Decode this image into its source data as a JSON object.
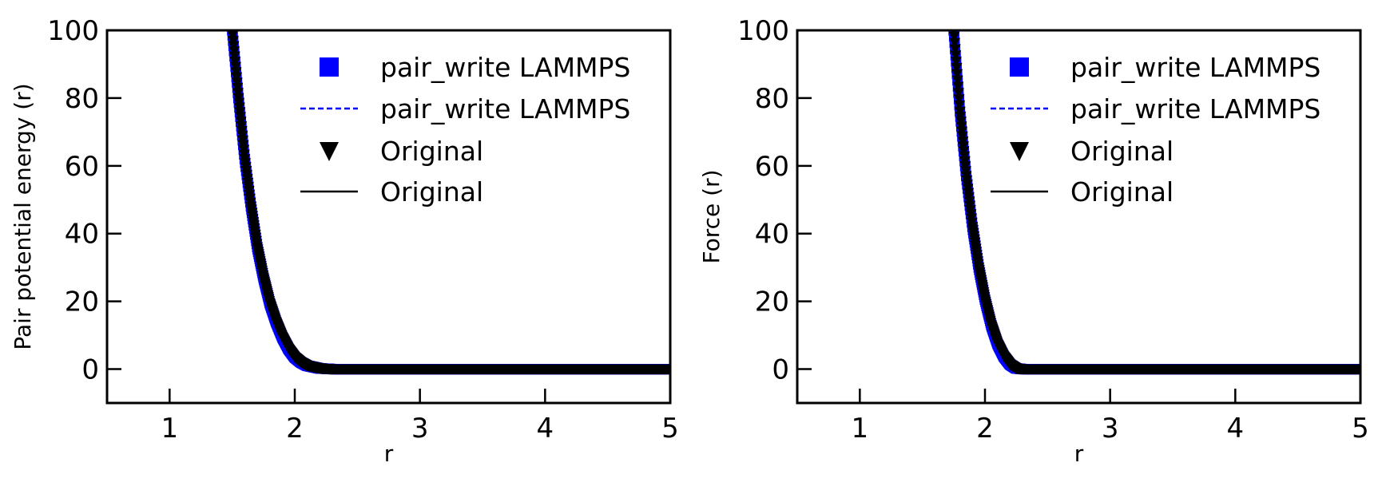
{
  "chart_data": [
    {
      "type": "line",
      "title": "",
      "xlabel": "r",
      "ylabel": "Pair potential energy (r)",
      "xlim": [
        0.5,
        5
      ],
      "ylim": [
        -10,
        100
      ],
      "xticks": [
        1,
        2,
        3,
        4,
        5
      ],
      "yticks": [
        0,
        20,
        40,
        60,
        80,
        100
      ],
      "grid": false,
      "legend_position": "top-right",
      "series": [
        {
          "name": "pair_write LAMMPS",
          "style": "square-markers",
          "color": "#0000ff",
          "x": [
            1.5,
            1.55,
            1.6,
            1.65,
            1.7,
            1.75,
            1.8,
            1.85,
            1.9,
            1.95,
            2.0,
            2.05,
            2.1,
            2.2,
            2.3,
            2.5,
            3.0,
            3.5,
            4.0,
            4.5,
            5.0
          ],
          "y": [
            100,
            80,
            62,
            48,
            36,
            27,
            19.5,
            14,
            9.5,
            6,
            3.5,
            2,
            1,
            0.2,
            0,
            0,
            0,
            0,
            0,
            0,
            0
          ]
        },
        {
          "name": "pair_write LAMMPS",
          "style": "dashed-line",
          "color": "#0000ff",
          "x": [
            1.5,
            1.55,
            1.6,
            1.65,
            1.7,
            1.75,
            1.8,
            1.85,
            1.9,
            1.95,
            2.0,
            2.05,
            2.1,
            2.2,
            2.3,
            2.5,
            3.0,
            3.5,
            4.0,
            4.5,
            5.0
          ],
          "y": [
            100,
            80,
            62,
            48,
            36,
            27,
            19.5,
            14,
            9.5,
            6,
            3.5,
            2,
            1,
            0.2,
            0,
            0,
            0,
            0,
            0,
            0,
            0
          ]
        },
        {
          "name": "Original",
          "style": "triangle-down-markers",
          "color": "#000000",
          "x": [
            1.5,
            1.55,
            1.6,
            1.65,
            1.7,
            1.75,
            1.8,
            1.85,
            1.9,
            1.95,
            2.0,
            2.05,
            2.1,
            2.2,
            2.3,
            2.5,
            3.0,
            3.5,
            4.0,
            4.5,
            5.0
          ],
          "y": [
            100,
            80,
            62,
            48,
            36,
            27,
            19.5,
            14,
            9.5,
            6,
            3.5,
            2,
            1,
            0.2,
            0,
            0,
            0,
            0,
            0,
            0,
            0
          ]
        },
        {
          "name": "Original",
          "style": "solid-line",
          "color": "#000000",
          "x": [
            1.5,
            1.55,
            1.6,
            1.65,
            1.7,
            1.75,
            1.8,
            1.85,
            1.9,
            1.95,
            2.0,
            2.05,
            2.1,
            2.2,
            2.3,
            2.5,
            3.0,
            3.5,
            4.0,
            4.5,
            5.0
          ],
          "y": [
            100,
            80,
            62,
            48,
            36,
            27,
            19.5,
            14,
            9.5,
            6,
            3.5,
            2,
            1,
            0.2,
            0,
            0,
            0,
            0,
            0,
            0,
            0
          ]
        }
      ]
    },
    {
      "type": "line",
      "title": "",
      "xlabel": "r",
      "ylabel": "Force (r)",
      "xlim": [
        0.5,
        5
      ],
      "ylim": [
        -10,
        100
      ],
      "xticks": [
        1,
        2,
        3,
        4,
        5
      ],
      "yticks": [
        0,
        20,
        40,
        60,
        80,
        100
      ],
      "grid": false,
      "legend_position": "top-right",
      "series": [
        {
          "name": "pair_write LAMMPS",
          "style": "square-markers",
          "color": "#0000ff",
          "x": [
            1.75,
            1.8,
            1.85,
            1.9,
            1.95,
            2.0,
            2.05,
            2.1,
            2.15,
            2.2,
            2.25,
            2.3,
            2.5,
            3.0,
            3.5,
            4.0,
            4.5,
            5.0
          ],
          "y": [
            100,
            76,
            57,
            42,
            30,
            20.5,
            13,
            7.5,
            3.8,
            1.4,
            0.2,
            0,
            0,
            0,
            0,
            0,
            0,
            0
          ]
        },
        {
          "name": "pair_write LAMMPS",
          "style": "dashed-line",
          "color": "#0000ff",
          "x": [
            1.75,
            1.8,
            1.85,
            1.9,
            1.95,
            2.0,
            2.05,
            2.1,
            2.15,
            2.2,
            2.25,
            2.3,
            2.5,
            3.0,
            3.5,
            4.0,
            4.5,
            5.0
          ],
          "y": [
            100,
            76,
            57,
            42,
            30,
            20.5,
            13,
            7.5,
            3.8,
            1.4,
            0.2,
            0,
            0,
            0,
            0,
            0,
            0,
            0
          ]
        },
        {
          "name": "Original",
          "style": "triangle-down-markers",
          "color": "#000000",
          "x": [
            1.75,
            1.8,
            1.85,
            1.9,
            1.95,
            2.0,
            2.05,
            2.1,
            2.15,
            2.2,
            2.25,
            2.3,
            2.5,
            3.0,
            3.5,
            4.0,
            4.5,
            5.0
          ],
          "y": [
            100,
            76,
            57,
            42,
            30,
            20.5,
            13,
            7.5,
            3.8,
            1.4,
            0.2,
            0,
            0,
            0,
            0,
            0,
            0,
            0
          ]
        },
        {
          "name": "Original",
          "style": "solid-line",
          "color": "#000000",
          "x": [
            1.75,
            1.8,
            1.85,
            1.9,
            1.95,
            2.0,
            2.05,
            2.1,
            2.15,
            2.2,
            2.25,
            2.3,
            2.5,
            3.0,
            3.5,
            4.0,
            4.5,
            5.0
          ],
          "y": [
            100,
            76,
            57,
            42,
            30,
            20.5,
            13,
            7.5,
            3.8,
            1.4,
            0.2,
            0,
            0,
            0,
            0,
            0,
            0,
            0
          ]
        }
      ]
    }
  ]
}
